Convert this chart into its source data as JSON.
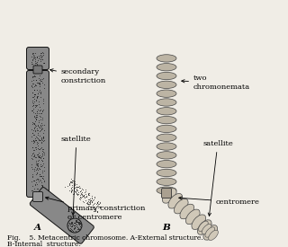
{
  "fig_caption_line1": "Fig.    5. Metacentric chromosome. A-External structure.",
  "fig_caption_line2": "B-Internal  structure.",
  "bg_color": "#f0ede6",
  "stipple_color": "#555555",
  "outline_color": "#111111",
  "coil_face": "#c8c0b0",
  "coil_edge": "#444444",
  "label_A": "A",
  "label_B": "B",
  "ann_secondary": "secondary\nconstriction",
  "ann_satellite_A": "satellite",
  "ann_primary": "primary constriction\nor centromere",
  "ann_two_chrom": "two\nchromonemata",
  "ann_satellite_B": "satellite",
  "ann_centromere": "centromere",
  "font_size_ann": 6.0,
  "font_size_label": 7.5,
  "font_size_caption": 5.5
}
